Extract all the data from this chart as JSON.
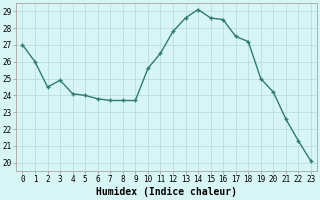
{
  "x": [
    0,
    1,
    2,
    3,
    4,
    5,
    6,
    7,
    8,
    9,
    10,
    11,
    12,
    13,
    14,
    15,
    16,
    17,
    18,
    19,
    20,
    21,
    22,
    23
  ],
  "y": [
    27.0,
    26.0,
    24.5,
    24.9,
    24.1,
    24.0,
    23.8,
    23.7,
    23.7,
    23.7,
    25.6,
    26.5,
    27.8,
    28.6,
    29.1,
    28.6,
    28.5,
    27.5,
    27.2,
    25.0,
    24.2,
    22.6,
    21.3,
    20.1
  ],
  "line_color": "#2e7d6e",
  "marker": "+",
  "bg_color": "#d8f5f5",
  "grid_color": "#b8d8d8",
  "xlabel": "Humidex (Indice chaleur)",
  "ylim": [
    19.5,
    29.5
  ],
  "xlim": [
    -0.5,
    23.5
  ],
  "yticks": [
    20,
    21,
    22,
    23,
    24,
    25,
    26,
    27,
    28,
    29
  ],
  "xticks": [
    0,
    1,
    2,
    3,
    4,
    5,
    6,
    7,
    8,
    9,
    10,
    11,
    12,
    13,
    14,
    15,
    16,
    17,
    18,
    19,
    20,
    21,
    22,
    23
  ],
  "tick_fontsize": 5.5,
  "xlabel_fontsize": 7,
  "linewidth": 1.0,
  "markersize": 3.5,
  "markeredgewidth": 1.0
}
